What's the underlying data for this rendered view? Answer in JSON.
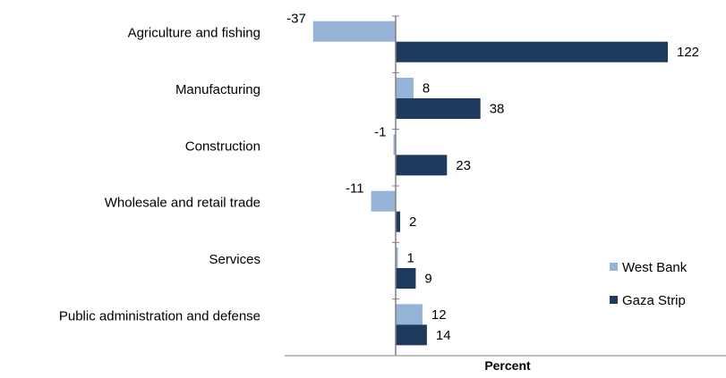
{
  "chart_data": {
    "type": "bar",
    "orientation": "horizontal",
    "categories": [
      "Agriculture and fishing",
      "Manufacturing",
      "Construction",
      "Wholesale and retail trade",
      "Services",
      "Public administration and defense"
    ],
    "series": [
      {
        "name": "West Bank",
        "values": [
          -37,
          8,
          -1,
          -11,
          1,
          12
        ],
        "color": "#95b3d7"
      },
      {
        "name": "Gaza Strip",
        "values": [
          122,
          38,
          23,
          2,
          9,
          14
        ],
        "color": "#1f3a5f"
      }
    ],
    "title": "",
    "xlabel": "Percent",
    "ylabel": "",
    "xlim": [
      -50,
      150
    ],
    "grid": false,
    "legend_position": "right"
  }
}
